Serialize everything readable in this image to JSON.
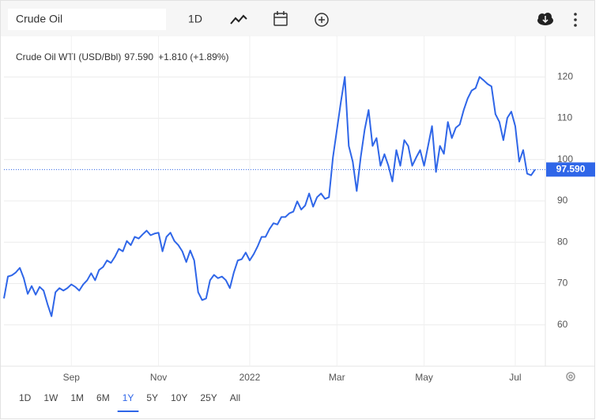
{
  "toolbar": {
    "search": "Crude Oil",
    "interval": "1D"
  },
  "ranges": [
    "1D",
    "1W",
    "1M",
    "6M",
    "1Y",
    "5Y",
    "10Y",
    "25Y",
    "All"
  ],
  "active_range": "1Y",
  "chart_data": {
    "type": "line",
    "price_label": "97.590",
    "change_label": "+1.810 (+1.89%)",
    "categories": [
      null,
      null,
      null,
      null,
      null,
      null,
      null,
      null,
      null,
      null,
      null,
      null,
      null,
      null,
      null,
      null,
      null,
      "Sep",
      null,
      null,
      null,
      null,
      null,
      null,
      null,
      null,
      null,
      null,
      null,
      null,
      null,
      null,
      null,
      null,
      null,
      null,
      null,
      null,
      null,
      "Nov",
      null,
      null,
      null,
      null,
      null,
      null,
      null,
      null,
      null,
      null,
      null,
      null,
      null,
      null,
      null,
      null,
      null,
      null,
      null,
      null,
      null,
      null,
      "2022",
      null,
      null,
      null,
      null,
      null,
      null,
      null,
      null,
      null,
      null,
      null,
      null,
      null,
      null,
      null,
      null,
      null,
      null,
      null,
      null,
      null,
      "Mar",
      null,
      null,
      null,
      null,
      null,
      null,
      null,
      null,
      null,
      null,
      null,
      null,
      null,
      null,
      null,
      null,
      null,
      null,
      null,
      null,
      null,
      "May",
      null,
      null,
      null,
      null,
      null,
      null,
      null,
      null,
      null,
      null,
      null,
      null,
      null,
      null,
      null,
      null,
      null,
      null,
      null,
      null,
      null,
      null,
      "Jul",
      null,
      null,
      null,
      null,
      null
    ],
    "series": [
      {
        "name": "Crude Oil WTI (USD/Bbl)",
        "color": "#2f66e8",
        "values": [
          66.4,
          71.7,
          72,
          72.7,
          73.8,
          71.3,
          67.5,
          69.4,
          67.3,
          69.2,
          68.3,
          65,
          62.1,
          67.9,
          68.9,
          68.3,
          68.9,
          69.8,
          69.2,
          68.3,
          69.8,
          70.8,
          72.5,
          70.8,
          73.3,
          74,
          75.6,
          75,
          76.5,
          78.4,
          77.8,
          80.3,
          79.3,
          81.3,
          80.9,
          81.9,
          82.8,
          81.7,
          82.1,
          82.3,
          77.8,
          81.3,
          82.3,
          80.3,
          79.3,
          77.8,
          75.2,
          78,
          75.6,
          67.9,
          66,
          66.4,
          70.8,
          72.1,
          71.3,
          71.7,
          70.8,
          68.9,
          72.7,
          75.6,
          75.9,
          77.5,
          75.6,
          77.1,
          79,
          81.3,
          81.3,
          83.2,
          84.6,
          84.3,
          86.1,
          86.1,
          87,
          87.4,
          89.9,
          87.9,
          88.9,
          91.8,
          88.6,
          90.9,
          91.8,
          90.5,
          90.9,
          100.5,
          107.2,
          113.9,
          120,
          103.3,
          99.5,
          92.4,
          100.5,
          107.2,
          112,
          103.3,
          105.2,
          98.5,
          101.3,
          98.5,
          94.7,
          102.3,
          98.5,
          104.7,
          103.3,
          98.5,
          100.5,
          102.3,
          98.5,
          103.3,
          108.1,
          97,
          103.3,
          101.4,
          109.1,
          105.2,
          107.7,
          108.5,
          112,
          114.8,
          116.7,
          117.3,
          120,
          119.2,
          118.3,
          117.7,
          111,
          109.1,
          104.7,
          110.1,
          111.6,
          108.1,
          99.5,
          102.3,
          96.6,
          96.2,
          97.59
        ]
      }
    ],
    "ylim": [
      50,
      130
    ],
    "yticks": [
      60,
      70,
      80,
      90,
      100,
      110,
      120
    ],
    "grid": true,
    "change_color": "#3aa845"
  }
}
